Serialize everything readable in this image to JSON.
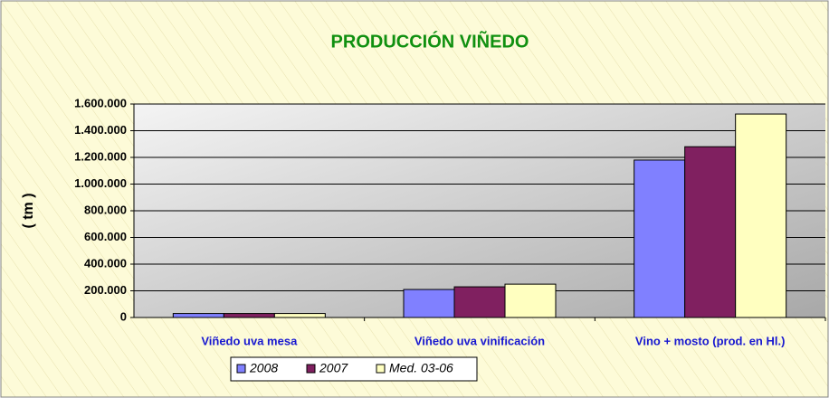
{
  "chart_data": {
    "type": "bar",
    "title": "PRODUCCIÓN  VIÑEDO",
    "y_label": "( tm )",
    "categories": [
      "Viñedo uva mesa",
      "Viñedo uva vinificación",
      "Vino + mosto (prod. en Hl.)"
    ],
    "series": [
      {
        "name": "2008",
        "color": "#8080ff",
        "values": [
          30000,
          210000,
          1180000
        ]
      },
      {
        "name": "2007",
        "color": "#802060",
        "values": [
          30000,
          230000,
          1280000
        ]
      },
      {
        "name": "Med. 03-06",
        "color": "#ffffc0",
        "values": [
          30000,
          250000,
          1525000
        ]
      }
    ],
    "ylim": [
      0,
      1600000
    ],
    "yticks": [
      0,
      {
        "value": 200000,
        "label": "200.000"
      },
      {
        "value": 400000,
        "label": "400.000"
      },
      {
        "value": 600000,
        "label": "600.000"
      },
      {
        "value": 800000,
        "label": "800.000"
      },
      {
        "value": 1000000,
        "label": "1.000.000"
      },
      {
        "value": 1200000,
        "label": "1.200.000"
      },
      {
        "value": 1400000,
        "label": "1.400.000"
      },
      {
        "value": 1600000,
        "label": "1.600.000"
      }
    ],
    "grid": true,
    "legend": "bottom"
  }
}
